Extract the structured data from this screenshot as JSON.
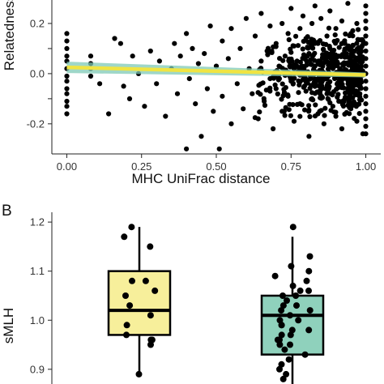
{
  "figure": {
    "panel_b_label": "B"
  },
  "chart_data": [
    {
      "panel": "A",
      "type": "scatter",
      "title": "",
      "xlabel": "MHC UniFrac distance",
      "ylabel": "Relatedness",
      "xlim": [
        -0.05,
        1.05
      ],
      "ylim": [
        -0.32,
        0.3
      ],
      "x_ticks": [
        0.0,
        0.25,
        0.5,
        0.75,
        1.0
      ],
      "x_tick_labels": [
        "0.00",
        "0.25",
        "0.50",
        "0.75",
        "1.00"
      ],
      "y_ticks": [
        -0.2,
        -0.1,
        0.0,
        0.1,
        0.2
      ],
      "y_tick_labels": [
        "-0.2",
        "",
        "0.0",
        "",
        "0.2"
      ],
      "grid": false,
      "point_color": "#000000",
      "points": [
        [
          0.0,
          0.16
        ],
        [
          0.0,
          0.13
        ],
        [
          0.0,
          0.1
        ],
        [
          0.0,
          0.07
        ],
        [
          0.0,
          0.05
        ],
        [
          0.0,
          0.02
        ],
        [
          0.0,
          -0.01
        ],
        [
          0.0,
          -0.03
        ],
        [
          0.0,
          -0.06
        ],
        [
          0.0,
          -0.08
        ],
        [
          0.0,
          -0.11
        ],
        [
          0.0,
          -0.13
        ],
        [
          0.0,
          -0.16
        ],
        [
          0.08,
          0.07
        ],
        [
          0.08,
          0.04
        ],
        [
          0.08,
          0.02
        ],
        [
          0.08,
          -0.01
        ],
        [
          0.11,
          -0.04
        ],
        [
          0.14,
          -0.16
        ],
        [
          0.16,
          0.14
        ],
        [
          0.18,
          0.12
        ],
        [
          0.19,
          -0.05
        ],
        [
          0.21,
          -0.1
        ],
        [
          0.22,
          0.07
        ],
        [
          0.24,
          0.0
        ],
        [
          0.26,
          -0.13
        ],
        [
          0.28,
          0.09
        ],
        [
          0.3,
          -0.04
        ],
        [
          0.31,
          0.05
        ],
        [
          0.33,
          -0.17
        ],
        [
          0.35,
          0.02
        ],
        [
          0.36,
          0.12
        ],
        [
          0.37,
          -0.08
        ],
        [
          0.38,
          0.07
        ],
        [
          0.4,
          -0.3
        ],
        [
          0.4,
          0.16
        ],
        [
          0.41,
          -0.02
        ],
        [
          0.42,
          0.1
        ],
        [
          0.43,
          -0.12
        ],
        [
          0.44,
          0.04
        ],
        [
          0.45,
          -0.25
        ],
        [
          0.46,
          0.08
        ],
        [
          0.47,
          -0.06
        ],
        [
          0.48,
          0.19
        ],
        [
          0.49,
          -0.15
        ],
        [
          0.5,
          0.03
        ],
        [
          0.51,
          -0.3
        ],
        [
          0.52,
          0.13
        ],
        [
          0.52,
          -0.09
        ],
        [
          0.54,
          0.06
        ],
        [
          0.55,
          -0.2
        ],
        [
          0.55,
          0.18
        ],
        [
          0.57,
          -0.04
        ],
        [
          0.58,
          0.1
        ],
        [
          0.59,
          -0.14
        ],
        [
          0.6,
          0.22
        ],
        [
          0.61,
          0.02
        ],
        [
          0.62,
          -0.08
        ],
        [
          0.63,
          0.15
        ],
        [
          0.64,
          -0.18
        ],
        [
          0.65,
          0.05
        ],
        [
          0.65,
          0.24
        ],
        [
          0.66,
          -0.11
        ],
        [
          0.67,
          0.09
        ],
        [
          0.68,
          -0.02
        ],
        [
          0.68,
          0.19
        ],
        [
          0.69,
          -0.22
        ],
        [
          0.7,
          0.12
        ],
        [
          0.7,
          -0.06
        ],
        [
          0.71,
          0.03
        ],
        [
          0.72,
          0.2
        ],
        [
          0.72,
          -0.15
        ],
        [
          0.73,
          0.07
        ],
        [
          0.74,
          -0.09
        ],
        [
          0.74,
          0.16
        ],
        [
          0.75,
          -0.03
        ],
        [
          0.75,
          0.26
        ],
        [
          0.76,
          0.11
        ],
        [
          0.76,
          -0.19
        ],
        [
          0.77,
          0.05
        ],
        [
          0.78,
          -0.12
        ],
        [
          0.78,
          0.18
        ],
        [
          0.79,
          0.0
        ],
        [
          0.79,
          0.23
        ],
        [
          0.8,
          -0.07
        ],
        [
          0.8,
          0.14
        ],
        [
          0.81,
          -0.25
        ],
        [
          0.81,
          0.08
        ],
        [
          0.82,
          0.2
        ],
        [
          0.82,
          -0.1
        ],
        [
          0.83,
          0.03
        ],
        [
          0.83,
          0.27
        ],
        [
          0.84,
          -0.16
        ],
        [
          0.84,
          0.12
        ],
        [
          0.85,
          -0.04
        ],
        [
          0.85,
          0.22
        ],
        [
          0.86,
          0.06
        ],
        [
          0.86,
          -0.2
        ],
        [
          0.87,
          0.15
        ],
        [
          0.87,
          -0.08
        ],
        [
          0.88,
          0.1
        ],
        [
          0.88,
          0.25
        ],
        [
          0.89,
          -0.13
        ],
        [
          0.89,
          0.02
        ],
        [
          0.9,
          0.18
        ],
        [
          0.9,
          -0.17
        ],
        [
          0.91,
          0.07
        ],
        [
          0.91,
          -0.05
        ],
        [
          0.92,
          0.21
        ],
        [
          0.92,
          -0.22
        ],
        [
          0.93,
          0.12
        ],
        [
          0.93,
          -0.1
        ],
        [
          0.94,
          0.04
        ],
        [
          0.94,
          0.28
        ],
        [
          0.95,
          -0.14
        ],
        [
          0.95,
          0.16
        ],
        [
          0.96,
          -0.02
        ],
        [
          0.96,
          0.09
        ],
        [
          0.97,
          -0.19
        ],
        [
          0.97,
          0.2
        ],
        [
          0.98,
          0.06
        ],
        [
          0.98,
          -0.08
        ],
        [
          0.99,
          0.13
        ],
        [
          0.99,
          -0.24
        ],
        [
          1.0,
          0.27
        ],
        [
          1.0,
          0.24
        ],
        [
          1.0,
          0.21
        ],
        [
          1.0,
          0.18
        ],
        [
          1.0,
          0.15
        ],
        [
          1.0,
          0.12
        ],
        [
          1.0,
          0.09
        ],
        [
          1.0,
          0.06
        ],
        [
          1.0,
          0.03
        ],
        [
          1.0,
          0.0
        ],
        [
          1.0,
          -0.03
        ],
        [
          1.0,
          -0.06
        ],
        [
          1.0,
          -0.09
        ],
        [
          1.0,
          -0.12
        ],
        [
          1.0,
          -0.15
        ],
        [
          1.0,
          -0.18
        ],
        [
          1.0,
          -0.21
        ],
        [
          1.0,
          -0.24
        ]
      ],
      "cloud_density": {
        "x_range": [
          0.62,
          0.99
        ],
        "y_range": [
          -0.18,
          0.2
        ],
        "count": 520
      },
      "fit_line": {
        "x": [
          0.0,
          1.0
        ],
        "y": [
          0.025,
          -0.005
        ],
        "color": "#f0e442",
        "ci_color": "#7fc9b6"
      }
    },
    {
      "panel": "B",
      "type": "box",
      "title": "",
      "xlabel": "",
      "ylabel": "sMLH",
      "ylim": [
        0.87,
        1.22
      ],
      "y_ticks": [
        0.9,
        1.0,
        1.1,
        1.2
      ],
      "y_tick_labels": [
        "0.9",
        "1.0",
        "1.1",
        "1.2"
      ],
      "grid": false,
      "boxes": [
        {
          "fill": "#f7ef9b",
          "q1": 0.97,
          "median": 1.02,
          "q3": 1.1,
          "whisker_low": 0.89,
          "whisker_high": 1.19,
          "points": [
            1.19,
            1.17,
            1.15,
            1.08,
            1.08,
            1.06,
            1.05,
            1.03,
            1.01,
            0.99,
            0.97,
            0.96,
            0.96,
            0.95,
            0.89
          ]
        },
        {
          "fill": "#8fd1bc",
          "q1": 0.93,
          "median": 1.01,
          "q3": 1.05,
          "whisker_low": 0.87,
          "whisker_high": 1.17,
          "points": [
            1.19,
            1.13,
            1.11,
            1.1,
            1.09,
            1.08,
            1.07,
            1.06,
            1.06,
            1.05,
            1.05,
            1.04,
            1.03,
            1.03,
            1.02,
            1.02,
            1.01,
            1.0,
            1.0,
            0.99,
            0.99,
            0.98,
            0.98,
            0.97,
            0.97,
            0.96,
            0.96,
            0.95,
            0.95,
            0.94,
            0.93,
            0.92,
            0.91,
            0.9,
            0.89,
            0.88
          ]
        }
      ]
    }
  ]
}
